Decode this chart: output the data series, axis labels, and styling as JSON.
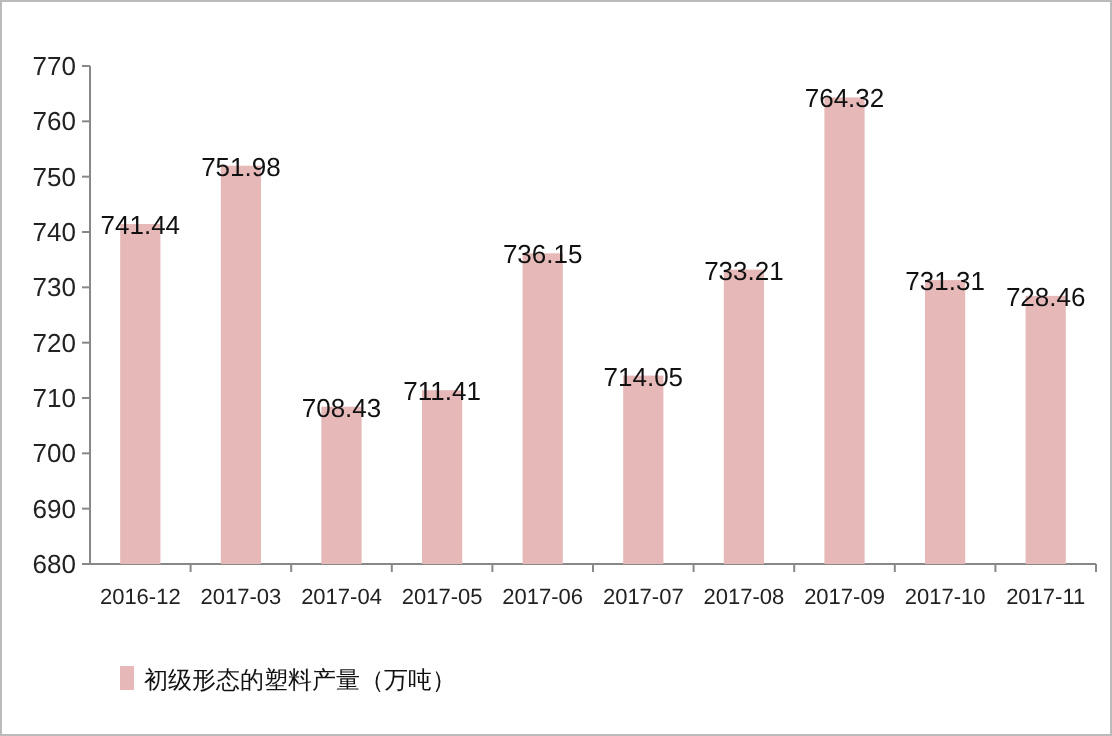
{
  "chart_data": {
    "type": "bar",
    "categories": [
      "2016-12",
      "2017-03",
      "2017-04",
      "2017-05",
      "2017-06",
      "2017-07",
      "2017-08",
      "2017-09",
      "2017-10",
      "2017-11"
    ],
    "series": [
      {
        "name": "初级形态的塑料产量（万吨）",
        "color": "#e6b9b8",
        "values": [
          741.44,
          751.98,
          708.43,
          711.41,
          736.15,
          714.05,
          733.21,
          764.32,
          731.31,
          728.46
        ]
      }
    ],
    "ylim": [
      680,
      770
    ],
    "yticks": [
      680,
      690,
      700,
      710,
      720,
      730,
      740,
      750,
      760,
      770
    ],
    "data_labels": true,
    "legend": "bottom",
    "grid": false
  }
}
